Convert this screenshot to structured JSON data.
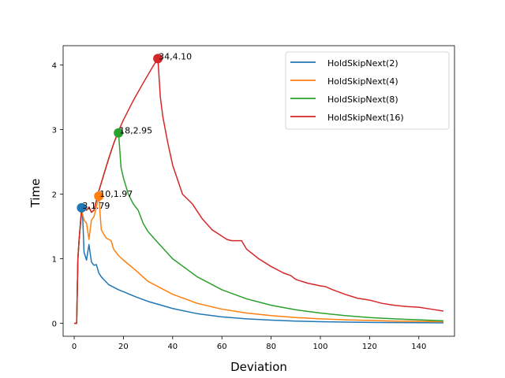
{
  "chart_data": {
    "type": "line",
    "title": "",
    "xlabel": "Deviation",
    "ylabel": "Time",
    "xlim": [
      -4.5,
      154.5
    ],
    "ylim": [
      -0.2,
      4.3
    ],
    "xticks": [
      0,
      20,
      40,
      60,
      80,
      100,
      120,
      140
    ],
    "yticks": [
      0,
      1,
      2,
      3,
      4
    ],
    "grid": false,
    "legend_position": "top-right",
    "series": [
      {
        "name": "HoldSkipNext(2)",
        "color": "#1f77b4",
        "x": [
          0,
          0.5,
          1,
          1.5,
          2,
          2.5,
          3,
          3.5,
          4,
          5,
          6,
          7,
          8,
          9,
          10,
          11,
          12,
          13,
          14,
          16,
          18,
          20,
          25,
          30,
          40,
          50,
          60,
          70,
          80,
          90,
          100,
          110,
          120,
          130,
          140,
          150
        ],
        "y": [
          0,
          0,
          0,
          1.0,
          1.3,
          1.55,
          1.79,
          1.6,
          1.1,
          0.98,
          1.22,
          0.95,
          0.9,
          0.91,
          0.78,
          0.72,
          0.68,
          0.64,
          0.6,
          0.56,
          0.52,
          0.49,
          0.41,
          0.34,
          0.23,
          0.15,
          0.1,
          0.07,
          0.05,
          0.035,
          0.025,
          0.02,
          0.015,
          0.012,
          0.01,
          0.008
        ]
      },
      {
        "name": "HoldSkipNext(4)",
        "color": "#ff7f0e",
        "x": [
          0,
          0.5,
          1,
          1.5,
          2,
          3,
          4,
          5,
          6,
          7,
          8,
          9,
          10,
          11,
          12,
          13,
          14,
          15,
          16,
          18,
          20,
          25,
          30,
          40,
          50,
          60,
          70,
          80,
          90,
          100,
          110,
          120,
          130,
          140,
          150
        ],
        "y": [
          0,
          0,
          0,
          1.0,
          1.3,
          1.75,
          1.6,
          1.55,
          1.3,
          1.6,
          1.65,
          1.8,
          1.97,
          1.45,
          1.38,
          1.32,
          1.3,
          1.28,
          1.15,
          1.05,
          0.98,
          0.82,
          0.65,
          0.45,
          0.31,
          0.22,
          0.16,
          0.12,
          0.09,
          0.07,
          0.055,
          0.045,
          0.035,
          0.03,
          0.025
        ]
      },
      {
        "name": "HoldSkipNext(8)",
        "color": "#2ca02c",
        "x": [
          0,
          0.5,
          1,
          1.5,
          2,
          3,
          4,
          5,
          6,
          7,
          8,
          9,
          10,
          12,
          14,
          16,
          17,
          18,
          18.5,
          19,
          20,
          22,
          24,
          26,
          28,
          30,
          34,
          40,
          50,
          60,
          70,
          80,
          90,
          100,
          110,
          120,
          130,
          140,
          150
        ],
        "y": [
          0,
          0,
          0,
          1.0,
          1.3,
          1.75,
          1.82,
          1.75,
          1.8,
          1.72,
          1.75,
          1.9,
          2.05,
          2.3,
          2.55,
          2.78,
          2.88,
          2.95,
          2.7,
          2.42,
          2.25,
          2.0,
          1.85,
          1.75,
          1.55,
          1.42,
          1.25,
          1.0,
          0.72,
          0.52,
          0.38,
          0.28,
          0.21,
          0.16,
          0.12,
          0.09,
          0.07,
          0.055,
          0.04
        ]
      },
      {
        "name": "HoldSkipNext(16)",
        "color": "#d62728",
        "x": [
          0,
          0.5,
          1,
          1.5,
          2,
          3,
          4,
          5,
          6,
          7,
          8,
          9,
          10,
          12,
          14,
          16,
          18,
          20,
          24,
          28,
          32,
          34,
          35,
          36,
          38,
          40,
          44,
          48,
          52,
          56,
          60,
          62,
          64,
          66,
          68,
          70,
          75,
          80,
          85,
          88,
          90,
          95,
          100,
          102,
          105,
          110,
          115,
          120,
          125,
          130,
          135,
          140,
          145,
          150
        ],
        "y": [
          0,
          0,
          0,
          1.0,
          1.3,
          1.75,
          1.82,
          1.75,
          1.8,
          1.72,
          1.75,
          1.9,
          2.05,
          2.3,
          2.55,
          2.78,
          2.98,
          3.15,
          3.45,
          3.72,
          3.98,
          4.1,
          3.5,
          3.2,
          2.8,
          2.45,
          2.0,
          1.85,
          1.62,
          1.45,
          1.35,
          1.3,
          1.28,
          1.28,
          1.28,
          1.15,
          1.0,
          0.88,
          0.78,
          0.74,
          0.68,
          0.62,
          0.58,
          0.57,
          0.52,
          0.45,
          0.39,
          0.36,
          0.31,
          0.28,
          0.26,
          0.25,
          0.22,
          0.19
        ]
      }
    ],
    "highlights": [
      {
        "series": 0,
        "x": 3,
        "y": 1.79,
        "label": "3,1.79"
      },
      {
        "series": 1,
        "x": 10,
        "y": 1.97,
        "label": "10,1.97"
      },
      {
        "series": 2,
        "x": 18,
        "y": 2.95,
        "label": "18,2.95"
      },
      {
        "series": 3,
        "x": 34,
        "y": 4.1,
        "label": "34,4.10"
      }
    ]
  }
}
